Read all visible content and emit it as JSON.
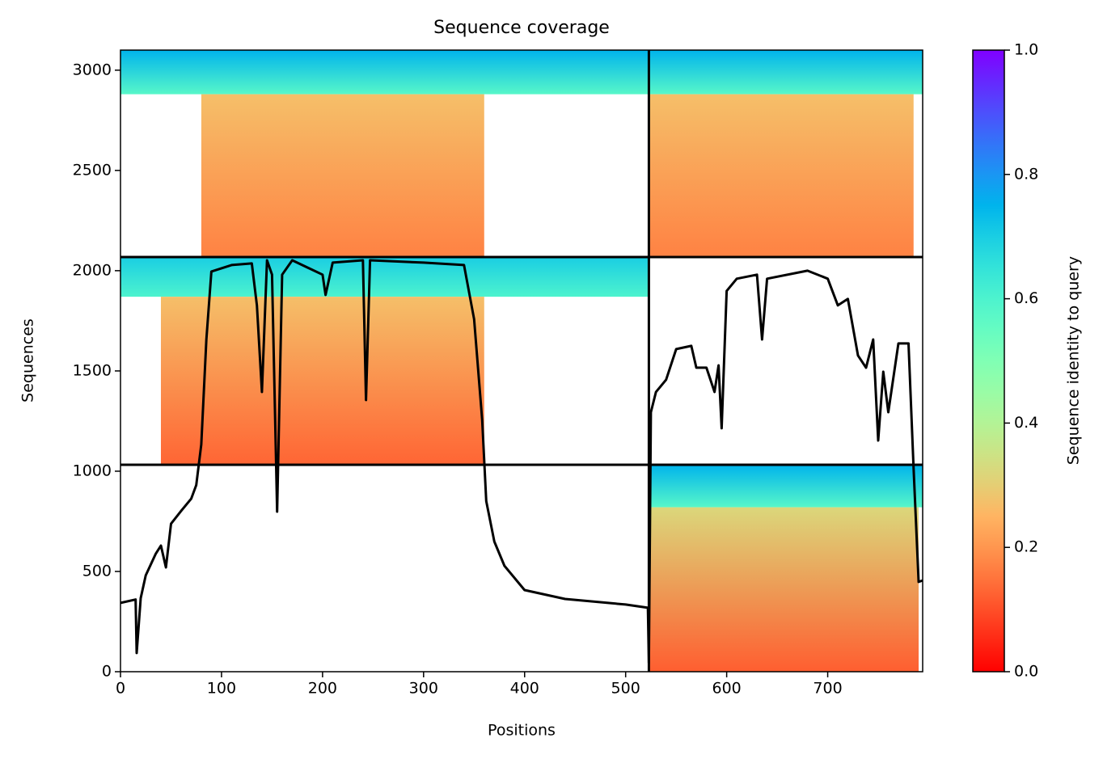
{
  "chart_data": {
    "type": "coverage_heatmap",
    "title": "Sequence coverage",
    "xlabel": "Positions",
    "ylabel": "Sequences",
    "xlim": [
      0,
      794
    ],
    "ylim": [
      0,
      3100
    ],
    "xticks": [
      0,
      100,
      200,
      300,
      400,
      500,
      600,
      700
    ],
    "yticks": [
      0,
      500,
      1000,
      1500,
      2000,
      2500,
      3000
    ],
    "colorbar_label": "Sequence identity to query",
    "clim": [
      0,
      1
    ],
    "colorbar_ticks": [
      {
        "value": 0,
        "label": "0.0"
      },
      {
        "value": 0.2,
        "label": "0.2"
      },
      {
        "value": 0.4,
        "label": "0.4"
      },
      {
        "value": 0.6,
        "label": "0.6"
      },
      {
        "value": 0.8,
        "label": "0.8"
      },
      {
        "value": 1,
        "label": "1.0"
      }
    ],
    "colormap": "rainbow_r",
    "blocks": [
      {
        "x": [
          0,
          523
        ],
        "rows": [
          2880,
          3100
        ],
        "identity": [
          0.58,
          0.75
        ]
      },
      {
        "x": [
          80,
          360
        ],
        "rows": [
          2068,
          2880
        ],
        "identity": [
          0.17,
          0.27
        ]
      },
      {
        "x": [
          523,
          794
        ],
        "rows": [
          2880,
          3100
        ],
        "identity": [
          0.58,
          0.75
        ]
      },
      {
        "x": [
          523,
          785
        ],
        "rows": [
          2068,
          2880
        ],
        "identity": [
          0.17,
          0.27
        ]
      },
      {
        "x": [
          0,
          523
        ],
        "rows": [
          1870,
          2068
        ],
        "identity": [
          0.6,
          0.7
        ]
      },
      {
        "x": [
          40,
          360
        ],
        "rows": [
          1032,
          1870
        ],
        "identity": [
          0.13,
          0.27
        ]
      },
      {
        "x": [
          523,
          794
        ],
        "rows": [
          820,
          1032
        ],
        "identity": [
          0.58,
          0.75
        ]
      },
      {
        "x": [
          523,
          790
        ],
        "rows": [
          0,
          820
        ],
        "identity": [
          0.12,
          0.32
        ]
      }
    ],
    "boundaries_x": [
      523
    ],
    "boundaries_y": [
      1032,
      2068
    ],
    "line_color": "#000000",
    "coverage": {
      "x": [
        0,
        15,
        16,
        20,
        25,
        35,
        40,
        45,
        50,
        60,
        70,
        75,
        80,
        85,
        90,
        110,
        130,
        135,
        140,
        145,
        150,
        155,
        160,
        170,
        200,
        203,
        210,
        240,
        243,
        247,
        300,
        340,
        350,
        358,
        362,
        370,
        380,
        400,
        440,
        500,
        522,
        523,
        525,
        530,
        540,
        550,
        565,
        570,
        580,
        588,
        592,
        595,
        600,
        610,
        630,
        635,
        640,
        680,
        700,
        710,
        720,
        730,
        738,
        745,
        750,
        755,
        760,
        770,
        780,
        785,
        790,
        794
      ],
      "values": [
        343,
        360,
        93,
        367,
        480,
        589,
        629,
        520,
        738,
        802,
        863,
        931,
        1133,
        1657,
        1996,
        2028,
        2036,
        1827,
        1395,
        2052,
        1980,
        798,
        1980,
        2052,
        1980,
        1879,
        2040,
        2052,
        1355,
        2052,
        2040,
        2028,
        1758,
        1254,
        851,
        649,
        528,
        407,
        363,
        335,
        319,
        44,
        1294,
        1395,
        1456,
        1609,
        1625,
        1516,
        1516,
        1395,
        1528,
        1214,
        1899,
        1960,
        1980,
        1657,
        1960,
        2000,
        1960,
        1827,
        1859,
        1577,
        1516,
        1657,
        1153,
        1496,
        1294,
        1637,
        1637,
        1012,
        448,
        455
      ]
    }
  }
}
